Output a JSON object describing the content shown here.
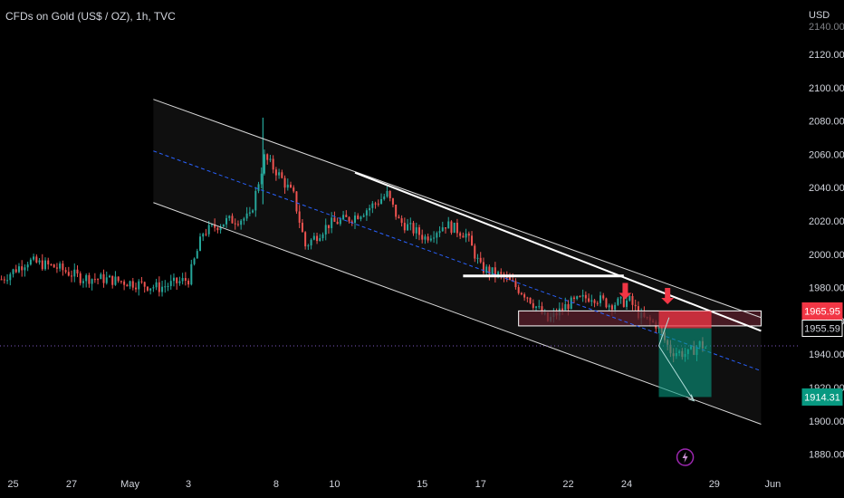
{
  "header": {
    "title": "CFDs on Gold (US$ / OZ), 1h, TVC"
  },
  "colors": {
    "background": "#000000",
    "bull": "#26a69a",
    "bear": "#ef5350",
    "channel": "#d9d9d9",
    "midline": "#2962ff",
    "zone": "#5a1f2b",
    "sell_zone": "#f23645",
    "target_zone": "#089981",
    "arrow": "#f23645"
  },
  "chart_data": {
    "type": "candlestick",
    "currency": "USD",
    "y_ticks": [
      1880,
      1900,
      1920,
      1940,
      1960,
      1980,
      2000,
      2020,
      2040,
      2060,
      2080,
      2100,
      2120
    ],
    "y_top_label": "2140.00",
    "ylim": [
      1870,
      2145
    ],
    "x_ticks": [
      {
        "label": "25",
        "day": 25
      },
      {
        "label": "27",
        "day": 27
      },
      {
        "label": "May",
        "day": 29
      },
      {
        "label": "3",
        "day": 31
      },
      {
        "label": "8",
        "day": 34
      },
      {
        "label": "10",
        "day": 36
      },
      {
        "label": "15",
        "day": 39
      },
      {
        "label": "17",
        "day": 41
      },
      {
        "label": "22",
        "day": 44
      },
      {
        "label": "24",
        "day": 46
      },
      {
        "label": "29",
        "day": 49
      },
      {
        "label": "Jun",
        "day": 51
      }
    ],
    "xlim": [
      24.55,
      51.95
    ],
    "trend_path": [
      {
        "day": 24.6,
        "price": 1985
      },
      {
        "day": 25.5,
        "price": 1996
      },
      {
        "day": 26.5,
        "price": 1992
      },
      {
        "day": 27.3,
        "price": 1986
      },
      {
        "day": 28.2,
        "price": 1985
      },
      {
        "day": 29.0,
        "price": 1983
      },
      {
        "day": 30.0,
        "price": 1980
      },
      {
        "day": 31.0,
        "price": 1985
      },
      {
        "day": 31.5,
        "price": 2013
      },
      {
        "day": 32.3,
        "price": 2020
      },
      {
        "day": 33.1,
        "price": 2022
      },
      {
        "day": 33.6,
        "price": 2058
      },
      {
        "day": 34.0,
        "price": 2050
      },
      {
        "day": 34.6,
        "price": 2035
      },
      {
        "day": 35.0,
        "price": 2005
      },
      {
        "day": 35.8,
        "price": 2018
      },
      {
        "day": 36.6,
        "price": 2022
      },
      {
        "day": 37.2,
        "price": 2028
      },
      {
        "day": 37.8,
        "price": 2036
      },
      {
        "day": 38.2,
        "price": 2020
      },
      {
        "day": 39.1,
        "price": 2010
      },
      {
        "day": 39.8,
        "price": 2018
      },
      {
        "day": 40.5,
        "price": 2012
      },
      {
        "day": 41.0,
        "price": 1992
      },
      {
        "day": 41.8,
        "price": 1986
      },
      {
        "day": 42.6,
        "price": 1975
      },
      {
        "day": 43.3,
        "price": 1960
      },
      {
        "day": 44.0,
        "price": 1970
      },
      {
        "day": 44.8,
        "price": 1975
      },
      {
        "day": 45.4,
        "price": 1970
      },
      {
        "day": 46.1,
        "price": 1972
      },
      {
        "day": 46.5,
        "price": 1962
      },
      {
        "day": 47.0,
        "price": 1958
      },
      {
        "day": 47.5,
        "price": 1942
      },
      {
        "day": 48.1,
        "price": 1940
      },
      {
        "day": 48.5,
        "price": 1946
      },
      {
        "day": 48.8,
        "price": 1943
      }
    ],
    "channel": {
      "upper": [
        {
          "day": 29.8,
          "price": 2093
        },
        {
          "day": 50.6,
          "price": 1962
        }
      ],
      "middle": [
        {
          "day": 29.8,
          "price": 2062
        },
        {
          "day": 50.6,
          "price": 1930
        }
      ],
      "lower": [
        {
          "day": 29.8,
          "price": 2031
        },
        {
          "day": 50.6,
          "price": 1898
        }
      ]
    },
    "trendline_white": [
      {
        "day": 36.7,
        "price": 2049
      },
      {
        "day": 50.6,
        "price": 1954
      }
    ],
    "horizontal_resistance": {
      "day_start": 40.4,
      "day_end": 45.9,
      "price": 1987
    },
    "zone": {
      "day_start": 42.3,
      "day_end": 50.6,
      "price_low": 1957,
      "price_high": 1966
    },
    "current_price": 1945,
    "trade_box": {
      "day_start": 47.1,
      "day_end": 48.9,
      "entry": 1955.59,
      "stop": 1965.95,
      "target": 1914.31
    },
    "arrows": [
      {
        "day": 45.95,
        "price": 1973
      },
      {
        "day": 47.4,
        "price": 1970
      }
    ],
    "projection": [
      {
        "day": 47.45,
        "price": 1962
      },
      {
        "day": 47.1,
        "price": 1945
      },
      {
        "day": 48.3,
        "price": 1912
      }
    ],
    "price_labels": [
      {
        "value": "1965.95",
        "price": 1965.95,
        "style": "stop"
      },
      {
        "value": "1955.59",
        "price": 1955.59,
        "style": "entry"
      },
      {
        "value": "1914.31",
        "price": 1914.31,
        "style": "target"
      }
    ]
  }
}
